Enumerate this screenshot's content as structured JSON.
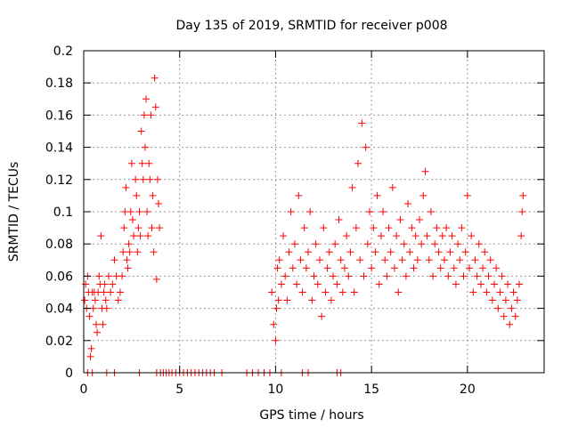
{
  "chart_data": {
    "type": "scatter",
    "title": "Day 135 of 2019, SRMTID for receiver p008",
    "xlabel": "GPS time / hours",
    "ylabel": "SRMTID / TECUs",
    "xlim": [
      0,
      24
    ],
    "ylim": [
      0,
      0.2
    ],
    "x_ticks": [
      0,
      5,
      10,
      15,
      20
    ],
    "x_tick_labels": [
      "0",
      "5",
      "10",
      "15",
      "20"
    ],
    "y_ticks": [
      0,
      0.02,
      0.04,
      0.06,
      0.08,
      0.1,
      0.12,
      0.14,
      0.16,
      0.18,
      0.2
    ],
    "y_tick_labels": [
      "0",
      "0.02",
      "0.04",
      "0.06",
      "0.08",
      "0.1",
      "0.12",
      "0.14",
      "0.16",
      "0.18",
      "0.2"
    ],
    "grid": true,
    "marker": "+",
    "color": "#ff0000",
    "series": [
      {
        "name": "SRMTID",
        "points": [
          [
            0.05,
            0.045
          ],
          [
            0.1,
            0.055
          ],
          [
            0.15,
            0.04
          ],
          [
            0.2,
            0.06
          ],
          [
            0.25,
            0.05
          ],
          [
            0.3,
            0.035
          ],
          [
            0.35,
            0.01
          ],
          [
            0.4,
            0.015
          ],
          [
            0.45,
            0.05
          ],
          [
            0.5,
            0.04
          ],
          [
            0.55,
            0.05
          ],
          [
            0.6,
            0.045
          ],
          [
            0.65,
            0.03
          ],
          [
            0.7,
            0.025
          ],
          [
            0.75,
            0.05
          ],
          [
            0.8,
            0.06
          ],
          [
            0.85,
            0.055
          ],
          [
            0.9,
            0.085
          ],
          [
            0.95,
            0.04
          ],
          [
            1.0,
            0.03
          ],
          [
            1.05,
            0.05
          ],
          [
            1.1,
            0.055
          ],
          [
            1.15,
            0.045
          ],
          [
            1.2,
            0.04
          ],
          [
            1.3,
            0.06
          ],
          [
            1.4,
            0.05
          ],
          [
            1.5,
            0.055
          ],
          [
            1.6,
            0.07
          ],
          [
            1.7,
            0.06
          ],
          [
            1.8,
            0.045
          ],
          [
            1.9,
            0.05
          ],
          [
            2.0,
            0.06
          ],
          [
            2.05,
            0.075
          ],
          [
            2.1,
            0.09
          ],
          [
            2.15,
            0.1
          ],
          [
            2.2,
            0.115
          ],
          [
            2.25,
            0.07
          ],
          [
            2.3,
            0.065
          ],
          [
            2.35,
            0.08
          ],
          [
            2.4,
            0.075
          ],
          [
            2.45,
            0.1
          ],
          [
            2.5,
            0.13
          ],
          [
            2.55,
            0.095
          ],
          [
            2.6,
            0.085
          ],
          [
            2.7,
            0.12
          ],
          [
            2.75,
            0.11
          ],
          [
            2.8,
            0.075
          ],
          [
            2.85,
            0.09
          ],
          [
            2.9,
            0.1
          ],
          [
            2.95,
            0.085
          ],
          [
            3.0,
            0.15
          ],
          [
            3.05,
            0.13
          ],
          [
            3.1,
            0.12
          ],
          [
            3.15,
            0.16
          ],
          [
            3.2,
            0.14
          ],
          [
            3.25,
            0.17
          ],
          [
            3.3,
            0.1
          ],
          [
            3.35,
            0.085
          ],
          [
            3.4,
            0.13
          ],
          [
            3.45,
            0.12
          ],
          [
            3.5,
            0.16
          ],
          [
            3.55,
            0.09
          ],
          [
            3.6,
            0.11
          ],
          [
            3.65,
            0.075
          ],
          [
            3.7,
            0.183
          ],
          [
            3.75,
            0.165
          ],
          [
            3.8,
            0.058
          ],
          [
            3.85,
            0.12
          ],
          [
            3.9,
            0.105
          ],
          [
            3.95,
            0.09
          ],
          [
            0.2,
            0.0
          ],
          [
            0.45,
            0.0
          ],
          [
            1.2,
            0.0
          ],
          [
            1.6,
            0.0
          ],
          [
            2.9,
            0.0
          ],
          [
            3.8,
            0.0
          ],
          [
            4.0,
            0.0
          ],
          [
            4.15,
            0.0
          ],
          [
            4.3,
            0.0
          ],
          [
            4.45,
            0.0
          ],
          [
            4.6,
            0.0
          ],
          [
            4.8,
            0.0
          ],
          [
            5.0,
            0.0
          ],
          [
            5.2,
            0.0
          ],
          [
            5.4,
            0.0
          ],
          [
            5.6,
            0.0
          ],
          [
            5.8,
            0.0
          ],
          [
            6.0,
            0.0
          ],
          [
            6.2,
            0.0
          ],
          [
            6.4,
            0.0
          ],
          [
            6.6,
            0.0
          ],
          [
            6.8,
            0.0
          ],
          [
            7.2,
            0.0
          ],
          [
            8.5,
            0.0
          ],
          [
            8.8,
            0.0
          ],
          [
            9.1,
            0.0
          ],
          [
            9.4,
            0.0
          ],
          [
            9.7,
            0.0
          ],
          [
            10.3,
            0.0
          ],
          [
            11.4,
            0.0
          ],
          [
            11.7,
            0.0
          ],
          [
            13.2,
            0.0
          ],
          [
            13.4,
            0.0
          ],
          [
            9.8,
            0.05
          ],
          [
            9.9,
            0.03
          ],
          [
            10.0,
            0.02
          ],
          [
            10.05,
            0.04
          ],
          [
            10.1,
            0.065
          ],
          [
            10.15,
            0.045
          ],
          [
            10.2,
            0.07
          ],
          [
            10.3,
            0.055
          ],
          [
            10.4,
            0.085
          ],
          [
            10.5,
            0.06
          ],
          [
            10.6,
            0.045
          ],
          [
            10.7,
            0.075
          ],
          [
            10.8,
            0.1
          ],
          [
            10.9,
            0.065
          ],
          [
            11.0,
            0.08
          ],
          [
            11.1,
            0.055
          ],
          [
            11.2,
            0.11
          ],
          [
            11.3,
            0.07
          ],
          [
            11.4,
            0.05
          ],
          [
            11.5,
            0.09
          ],
          [
            11.6,
            0.065
          ],
          [
            11.7,
            0.075
          ],
          [
            11.8,
            0.1
          ],
          [
            11.9,
            0.045
          ],
          [
            12.0,
            0.06
          ],
          [
            12.1,
            0.08
          ],
          [
            12.2,
            0.055
          ],
          [
            12.3,
            0.07
          ],
          [
            12.4,
            0.035
          ],
          [
            12.5,
            0.09
          ],
          [
            12.6,
            0.05
          ],
          [
            12.7,
            0.065
          ],
          [
            12.8,
            0.075
          ],
          [
            12.9,
            0.045
          ],
          [
            13.0,
            0.06
          ],
          [
            13.1,
            0.08
          ],
          [
            13.2,
            0.055
          ],
          [
            13.3,
            0.095
          ],
          [
            13.4,
            0.07
          ],
          [
            13.5,
            0.05
          ],
          [
            13.6,
            0.065
          ],
          [
            13.7,
            0.085
          ],
          [
            13.8,
            0.06
          ],
          [
            13.9,
            0.075
          ],
          [
            14.0,
            0.115
          ],
          [
            14.1,
            0.05
          ],
          [
            14.2,
            0.09
          ],
          [
            14.3,
            0.13
          ],
          [
            14.4,
            0.07
          ],
          [
            14.5,
            0.155
          ],
          [
            14.6,
            0.06
          ],
          [
            14.7,
            0.14
          ],
          [
            14.8,
            0.08
          ],
          [
            14.9,
            0.1
          ],
          [
            15.0,
            0.065
          ],
          [
            15.1,
            0.09
          ],
          [
            15.2,
            0.075
          ],
          [
            15.3,
            0.11
          ],
          [
            15.4,
            0.055
          ],
          [
            15.5,
            0.085
          ],
          [
            15.6,
            0.1
          ],
          [
            15.7,
            0.07
          ],
          [
            15.8,
            0.06
          ],
          [
            15.9,
            0.09
          ],
          [
            16.0,
            0.075
          ],
          [
            16.1,
            0.115
          ],
          [
            16.2,
            0.065
          ],
          [
            16.3,
            0.085
          ],
          [
            16.4,
            0.05
          ],
          [
            16.5,
            0.095
          ],
          [
            16.6,
            0.07
          ],
          [
            16.7,
            0.08
          ],
          [
            16.8,
            0.06
          ],
          [
            16.9,
            0.105
          ],
          [
            17.0,
            0.075
          ],
          [
            17.1,
            0.09
          ],
          [
            17.2,
            0.065
          ],
          [
            17.3,
            0.085
          ],
          [
            17.4,
            0.07
          ],
          [
            17.5,
            0.095
          ],
          [
            17.6,
            0.08
          ],
          [
            17.7,
            0.11
          ],
          [
            17.8,
            0.125
          ],
          [
            17.9,
            0.085
          ],
          [
            18.0,
            0.07
          ],
          [
            18.1,
            0.1
          ],
          [
            18.2,
            0.06
          ],
          [
            18.3,
            0.08
          ],
          [
            18.4,
            0.09
          ],
          [
            18.5,
            0.075
          ],
          [
            18.6,
            0.065
          ],
          [
            18.7,
            0.085
          ],
          [
            18.8,
            0.07
          ],
          [
            18.9,
            0.09
          ],
          [
            19.0,
            0.06
          ],
          [
            19.1,
            0.075
          ],
          [
            19.2,
            0.085
          ],
          [
            19.3,
            0.065
          ],
          [
            19.4,
            0.055
          ],
          [
            19.5,
            0.08
          ],
          [
            19.6,
            0.07
          ],
          [
            19.7,
            0.09
          ],
          [
            19.8,
            0.06
          ],
          [
            19.9,
            0.075
          ],
          [
            20.0,
            0.11
          ],
          [
            20.1,
            0.065
          ],
          [
            20.2,
            0.085
          ],
          [
            20.3,
            0.05
          ],
          [
            20.4,
            0.07
          ],
          [
            20.5,
            0.06
          ],
          [
            20.6,
            0.08
          ],
          [
            20.7,
            0.055
          ],
          [
            20.8,
            0.065
          ],
          [
            20.9,
            0.075
          ],
          [
            21.0,
            0.05
          ],
          [
            21.1,
            0.06
          ],
          [
            21.2,
            0.07
          ],
          [
            21.3,
            0.045
          ],
          [
            21.4,
            0.055
          ],
          [
            21.5,
            0.065
          ],
          [
            21.6,
            0.04
          ],
          [
            21.7,
            0.05
          ],
          [
            21.8,
            0.06
          ],
          [
            21.9,
            0.035
          ],
          [
            22.0,
            0.045
          ],
          [
            22.1,
            0.055
          ],
          [
            22.2,
            0.03
          ],
          [
            22.3,
            0.04
          ],
          [
            22.4,
            0.05
          ],
          [
            22.5,
            0.035
          ],
          [
            22.6,
            0.045
          ],
          [
            22.7,
            0.055
          ],
          [
            22.8,
            0.085
          ],
          [
            22.9,
            0.11
          ],
          [
            22.85,
            0.1
          ]
        ]
      }
    ]
  }
}
